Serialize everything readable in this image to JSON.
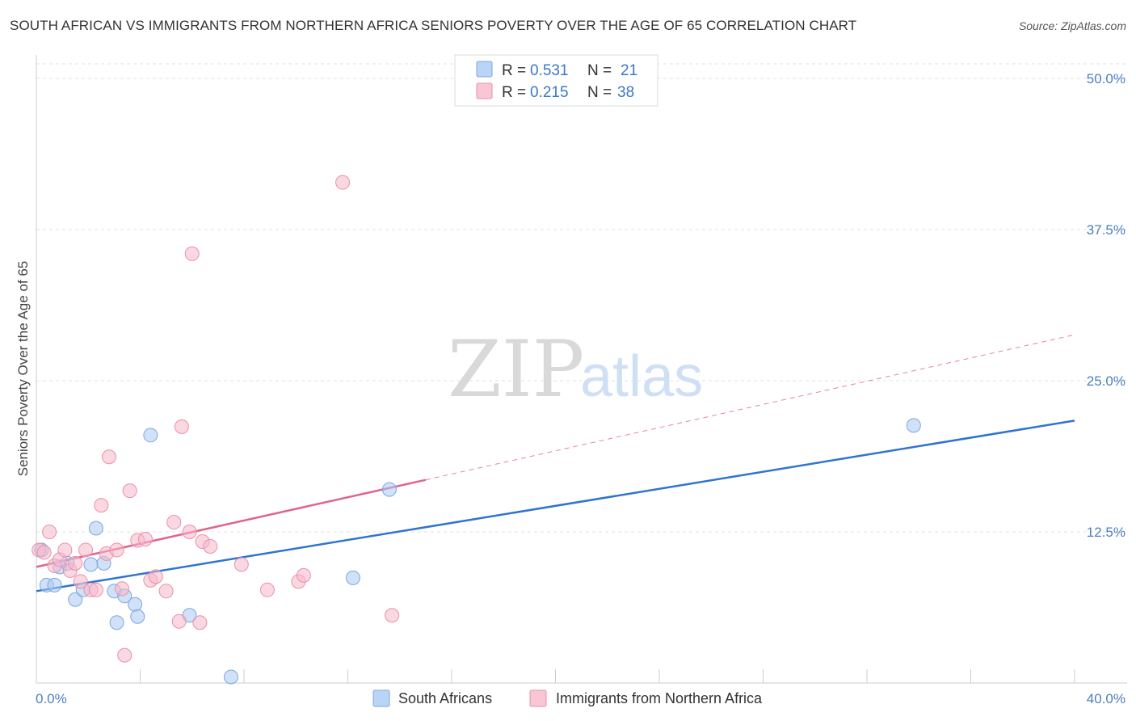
{
  "header": {
    "title": "SOUTH AFRICAN VS IMMIGRANTS FROM NORTHERN AFRICA SENIORS POVERTY OVER THE AGE OF 65 CORRELATION CHART",
    "source": "Source: ZipAtlas.com"
  },
  "watermark": {
    "zip": "ZIP",
    "atlas": "atlas"
  },
  "legend": {
    "rows": [
      {
        "r_label": "R =",
        "r_value": "0.531",
        "n_label": "N =",
        "n_value": "21",
        "color": "#a9c9f2"
      },
      {
        "r_label": "R =",
        "r_value": "0.215",
        "n_label": "N =",
        "n_value": "38",
        "color": "#f6b8cb"
      }
    ]
  },
  "bottom_legend": {
    "items": [
      {
        "label": "South Africans",
        "color": "#a9c9f2"
      },
      {
        "label": "Immigrants from Northern Africa",
        "color": "#f6b8cb"
      }
    ]
  },
  "chart_data": {
    "type": "scatter",
    "title": "SOUTH AFRICAN VS IMMIGRANTS FROM NORTHERN AFRICA SENIORS POVERTY OVER THE AGE OF 65 CORRELATION CHART",
    "xlabel": "",
    "ylabel": "Seniors Poverty Over the Age of 65",
    "xlim": [
      0,
      40
    ],
    "ylim": [
      0,
      50
    ],
    "x_tick_labels": [
      "0.0%",
      "40.0%"
    ],
    "y_ticks": [
      12.5,
      25.0,
      37.5,
      50.0
    ],
    "y_tick_labels": [
      "12.5%",
      "25.0%",
      "37.5%",
      "50.0%"
    ],
    "grid": true,
    "legend_position": "top-center",
    "series": [
      {
        "name": "South Africans",
        "color": "#a9c9f2",
        "stroke": "#7aa8e0",
        "trend_color": "#2f74d0",
        "trend": {
          "x0": 0,
          "y0": 7.6,
          "x1": 40,
          "y1": 21.7,
          "dashed_from": null
        },
        "points": [
          [
            0.2,
            11.0
          ],
          [
            0.4,
            8.1
          ],
          [
            0.7,
            8.1
          ],
          [
            0.9,
            9.6
          ],
          [
            1.2,
            9.9
          ],
          [
            1.5,
            6.9
          ],
          [
            1.8,
            7.7
          ],
          [
            2.1,
            9.8
          ],
          [
            2.3,
            12.8
          ],
          [
            2.6,
            9.9
          ],
          [
            3.0,
            7.6
          ],
          [
            3.1,
            5.0
          ],
          [
            3.4,
            7.2
          ],
          [
            3.8,
            6.5
          ],
          [
            3.9,
            5.5
          ],
          [
            4.4,
            20.5
          ],
          [
            5.9,
            5.6
          ],
          [
            7.5,
            0.5
          ],
          [
            12.2,
            8.7
          ],
          [
            13.6,
            16.0
          ],
          [
            33.8,
            21.3
          ]
        ]
      },
      {
        "name": "Immigrants from Northern Africa",
        "color": "#f6b8cb",
        "stroke": "#ea8fab",
        "trend_color": "#e0648e",
        "trend": {
          "x0": 0,
          "y0": 9.6,
          "x1": 15.0,
          "y1": 16.8,
          "dashed_to_x": 40,
          "dashed_to_y": 28.8
        },
        "points": [
          [
            0.1,
            11.0
          ],
          [
            0.3,
            10.8
          ],
          [
            0.5,
            12.5
          ],
          [
            0.7,
            9.7
          ],
          [
            0.9,
            10.2
          ],
          [
            1.1,
            11.0
          ],
          [
            1.3,
            9.3
          ],
          [
            1.5,
            9.9
          ],
          [
            1.7,
            8.4
          ],
          [
            1.9,
            11.0
          ],
          [
            2.1,
            7.7
          ],
          [
            2.3,
            7.7
          ],
          [
            2.5,
            14.7
          ],
          [
            2.7,
            10.7
          ],
          [
            2.8,
            18.7
          ],
          [
            3.1,
            11.0
          ],
          [
            3.3,
            7.8
          ],
          [
            3.4,
            2.3
          ],
          [
            3.6,
            15.9
          ],
          [
            3.9,
            11.8
          ],
          [
            4.2,
            11.9
          ],
          [
            4.4,
            8.5
          ],
          [
            4.6,
            8.8
          ],
          [
            5.0,
            7.6
          ],
          [
            5.3,
            13.3
          ],
          [
            5.5,
            5.1
          ],
          [
            5.6,
            21.2
          ],
          [
            5.9,
            12.5
          ],
          [
            6.0,
            35.5
          ],
          [
            6.3,
            5.0
          ],
          [
            6.4,
            11.7
          ],
          [
            6.7,
            11.3
          ],
          [
            7.9,
            9.8
          ],
          [
            8.9,
            7.7
          ],
          [
            10.1,
            8.4
          ],
          [
            10.3,
            8.9
          ],
          [
            11.8,
            41.4
          ],
          [
            13.7,
            5.6
          ]
        ]
      }
    ]
  }
}
